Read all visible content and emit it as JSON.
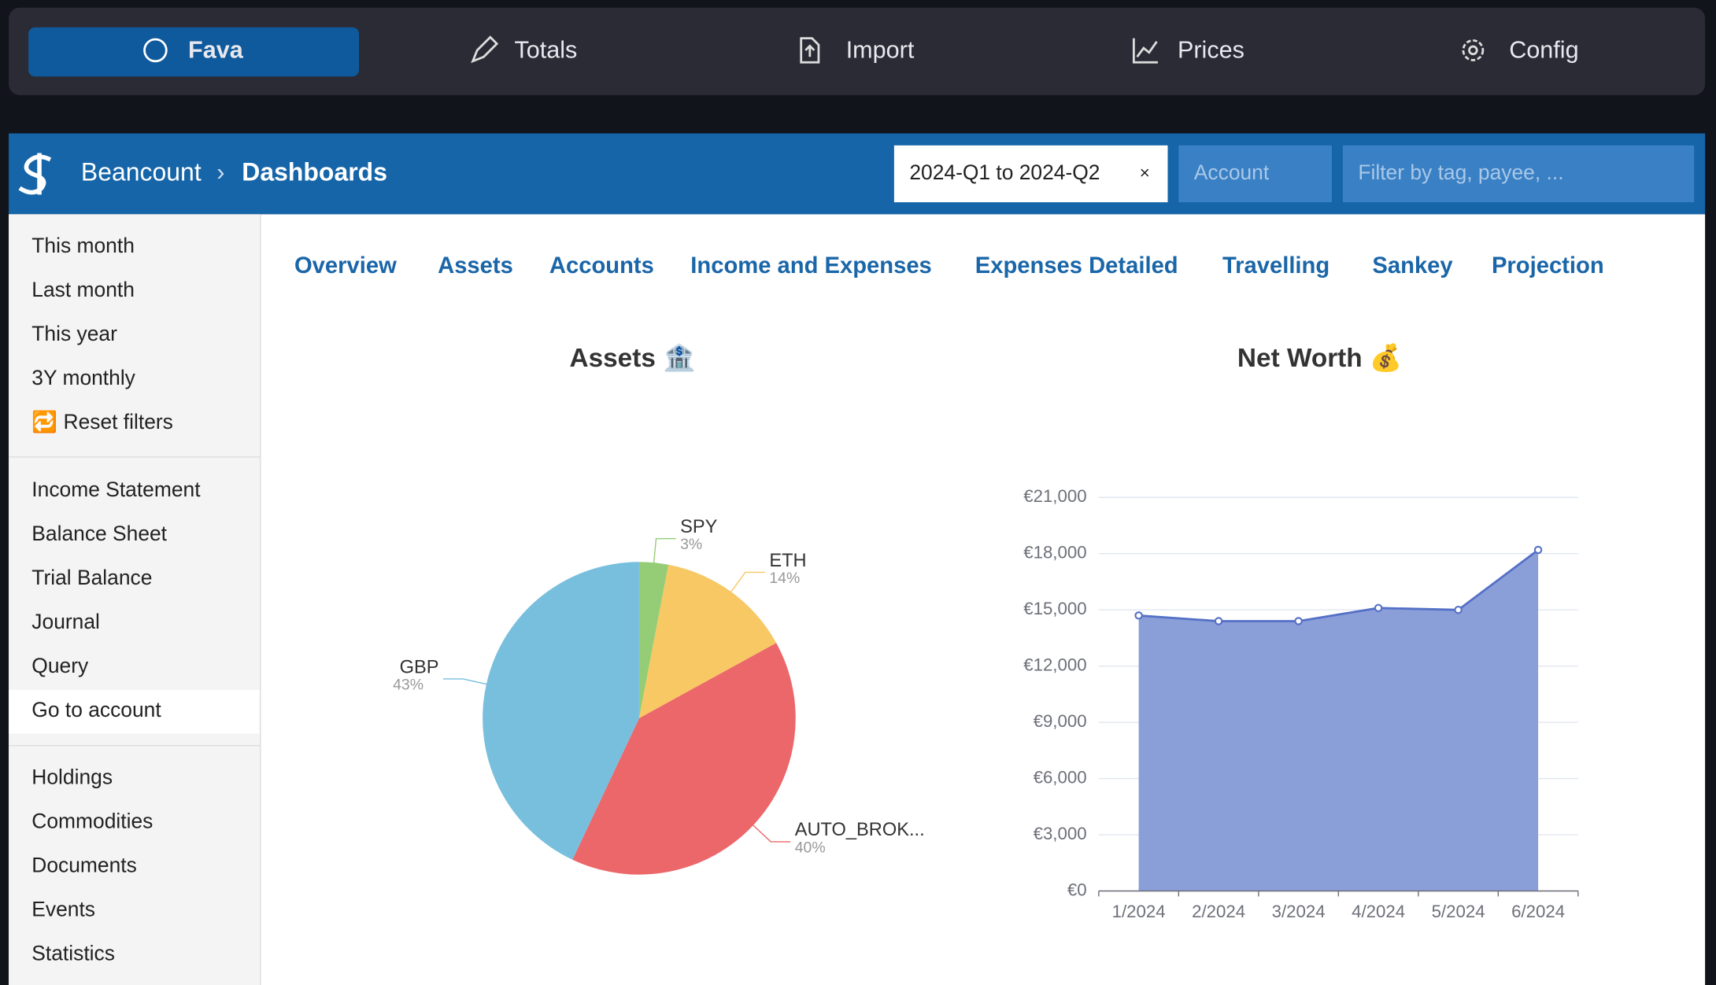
{
  "top_nav": [
    "Fava",
    "Totals",
    "Import",
    "Prices",
    "Config"
  ],
  "header": {
    "brand": "Beancount",
    "separator": "›",
    "page": "Dashboards",
    "time_filter": "2024-Q1 to 2024-Q2",
    "clear": "×",
    "account_placeholder": "Account",
    "filter_placeholder": "Filter by tag, payee, ..."
  },
  "sidebar": [
    [
      "This month",
      "Last month",
      "This year",
      "3Y monthly",
      "🔁 Reset filters"
    ],
    [
      "Income Statement",
      "Balance Sheet",
      "Trial Balance",
      "Journal",
      "Query",
      "Go to account"
    ],
    [
      "Holdings",
      "Commodities",
      "Documents",
      "Events",
      "Statistics"
    ]
  ],
  "dashboard_tabs": [
    "Overview",
    "Assets",
    "Accounts",
    "Income and Expenses",
    "Expenses Detailed",
    "Travelling",
    "Sankey",
    "Projection"
  ],
  "chart_data": [
    {
      "type": "pie",
      "title": "Assets 🏦",
      "categories": [
        "SPY",
        "ETH",
        "AUTO_BROK...",
        "GBP"
      ],
      "values": [
        3,
        14,
        40,
        43
      ],
      "value_labels": [
        "3%",
        "14%",
        "40%",
        "43%"
      ],
      "colors": [
        "#95cd77",
        "#f7c863",
        "#ec6769",
        "#78bfdd"
      ]
    },
    {
      "type": "area",
      "title": "Net Worth 💰",
      "categories": [
        "1/2024",
        "2/2024",
        "3/2024",
        "4/2024",
        "5/2024",
        "6/2024"
      ],
      "values": [
        14700,
        14400,
        14400,
        15100,
        15000,
        18200
      ],
      "color": "#5470c6",
      "fill": "#8a9ed8",
      "ylim": [
        0,
        21000
      ],
      "yticks": [
        {
          "value": 0,
          "label": "€0"
        },
        {
          "value": 3000,
          "label": "€3,000"
        },
        {
          "value": 6000,
          "label": "€6,000"
        },
        {
          "value": 9000,
          "label": "€9,000"
        },
        {
          "value": 12000,
          "label": "€12,000"
        },
        {
          "value": 15000,
          "label": "€15,000"
        },
        {
          "value": 18000,
          "label": "€18,000"
        },
        {
          "value": 21000,
          "label": "€21,000"
        }
      ],
      "grid": true
    }
  ]
}
